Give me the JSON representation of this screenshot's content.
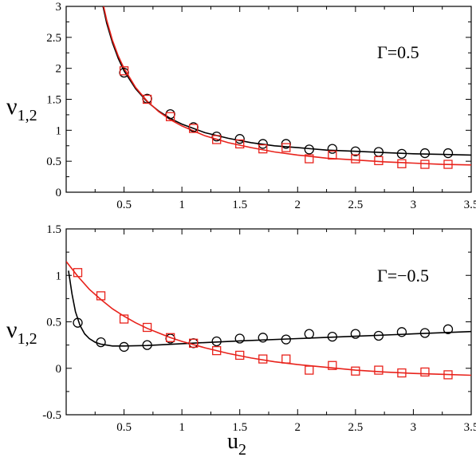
{
  "chart_data": [
    {
      "type": "scatter",
      "title": "",
      "xlabel": "",
      "ylabel": "ν",
      "ylabel_sub": "1,2",
      "annotation": "Γ=0.5",
      "xlim": [
        0,
        3.5
      ],
      "ylim": [
        0,
        3
      ],
      "xticks": [
        "0.5",
        "1",
        "1.5",
        "2",
        "2.5",
        "3",
        "3.5"
      ],
      "xtick_values": [
        0.5,
        1,
        1.5,
        2,
        2.5,
        3,
        3.5
      ],
      "yticks": [
        "0",
        "0.5",
        "1",
        "1.5",
        "2",
        "2.5",
        "3"
      ],
      "ytick_values": [
        0,
        0.5,
        1,
        1.5,
        2,
        2.5,
        3
      ],
      "series": [
        {
          "color": "#000000",
          "marker": "circle",
          "points": [
            [
              0.5,
              1.93
            ],
            [
              0.7,
              1.51
            ],
            [
              0.9,
              1.26
            ],
            [
              1.1,
              1.05
            ],
            [
              1.3,
              0.9
            ],
            [
              1.5,
              0.86
            ],
            [
              1.7,
              0.78
            ],
            [
              1.9,
              0.78
            ],
            [
              2.1,
              0.69
            ],
            [
              2.3,
              0.7
            ],
            [
              2.5,
              0.66
            ],
            [
              2.7,
              0.65
            ],
            [
              2.9,
              0.62
            ],
            [
              3.1,
              0.63
            ],
            [
              3.3,
              0.63
            ]
          ],
          "curve": [
            [
              0.3,
              3.16
            ],
            [
              0.35,
              2.73
            ],
            [
              0.4,
              2.41
            ],
            [
              0.45,
              2.16
            ],
            [
              0.5,
              1.96
            ],
            [
              0.6,
              1.67
            ],
            [
              0.7,
              1.46
            ],
            [
              0.8,
              1.31
            ],
            [
              0.9,
              1.19
            ],
            [
              1.0,
              1.1
            ],
            [
              1.2,
              0.96
            ],
            [
              1.4,
              0.87
            ],
            [
              1.6,
              0.8
            ],
            [
              1.8,
              0.75
            ],
            [
              2.0,
              0.72
            ],
            [
              2.25,
              0.68
            ],
            [
              2.5,
              0.66
            ],
            [
              2.75,
              0.64
            ],
            [
              3.0,
              0.62
            ],
            [
              3.25,
              0.61
            ],
            [
              3.5,
              0.6
            ]
          ]
        },
        {
          "color": "#e8221b",
          "marker": "square",
          "points": [
            [
              0.5,
              1.96
            ],
            [
              0.7,
              1.5
            ],
            [
              0.9,
              1.22
            ],
            [
              1.1,
              1.03
            ],
            [
              1.3,
              0.85
            ],
            [
              1.5,
              0.78
            ],
            [
              1.7,
              0.7
            ],
            [
              1.9,
              0.72
            ],
            [
              2.1,
              0.54
            ],
            [
              2.3,
              0.6
            ],
            [
              2.5,
              0.54
            ],
            [
              2.7,
              0.51
            ],
            [
              2.9,
              0.46
            ],
            [
              3.1,
              0.45
            ],
            [
              3.3,
              0.45
            ]
          ],
          "curve": [
            [
              0.3,
              3.2
            ],
            [
              0.35,
              2.78
            ],
            [
              0.4,
              2.45
            ],
            [
              0.45,
              2.2
            ],
            [
              0.5,
              2.0
            ],
            [
              0.6,
              1.69
            ],
            [
              0.7,
              1.47
            ],
            [
              0.8,
              1.3
            ],
            [
              0.9,
              1.17
            ],
            [
              1.0,
              1.07
            ],
            [
              1.2,
              0.91
            ],
            [
              1.4,
              0.8
            ],
            [
              1.6,
              0.72
            ],
            [
              1.8,
              0.65
            ],
            [
              2.0,
              0.6
            ],
            [
              2.25,
              0.55
            ],
            [
              2.5,
              0.52
            ],
            [
              2.75,
              0.49
            ],
            [
              3.0,
              0.47
            ],
            [
              3.25,
              0.45
            ],
            [
              3.5,
              0.44
            ]
          ]
        }
      ]
    },
    {
      "type": "scatter",
      "title": "",
      "xlabel": "u",
      "xlabel_sub": "2",
      "ylabel": "ν",
      "ylabel_sub": "1,2",
      "annotation": "Γ=−0.5",
      "xlim": [
        0,
        3.5
      ],
      "ylim": [
        -0.5,
        1.5
      ],
      "xticks": [
        "0.5",
        "1",
        "1.5",
        "2",
        "2.5",
        "3",
        "3.5"
      ],
      "xtick_values": [
        0.5,
        1,
        1.5,
        2,
        2.5,
        3,
        3.5
      ],
      "yticks": [
        "-0.5",
        "0",
        "0.5",
        "1",
        "1.5"
      ],
      "ytick_values": [
        -0.5,
        0,
        0.5,
        1,
        1.5
      ],
      "series": [
        {
          "color": "#000000",
          "marker": "circle",
          "points": [
            [
              0.1,
              0.49
            ],
            [
              0.3,
              0.28
            ],
            [
              0.5,
              0.23
            ],
            [
              0.7,
              0.25
            ],
            [
              0.9,
              0.32
            ],
            [
              1.1,
              0.27
            ],
            [
              1.3,
              0.29
            ],
            [
              1.5,
              0.32
            ],
            [
              1.7,
              0.33
            ],
            [
              1.9,
              0.31
            ],
            [
              2.1,
              0.37
            ],
            [
              2.3,
              0.34
            ],
            [
              2.5,
              0.37
            ],
            [
              2.7,
              0.35
            ],
            [
              2.9,
              0.39
            ],
            [
              3.1,
              0.38
            ],
            [
              3.3,
              0.42
            ]
          ],
          "curve": [
            [
              0.02,
              1.05
            ],
            [
              0.05,
              0.8
            ],
            [
              0.08,
              0.61
            ],
            [
              0.12,
              0.46
            ],
            [
              0.16,
              0.37
            ],
            [
              0.2,
              0.32
            ],
            [
              0.25,
              0.28
            ],
            [
              0.3,
              0.26
            ],
            [
              0.4,
              0.24
            ],
            [
              0.5,
              0.24
            ],
            [
              0.7,
              0.245
            ],
            [
              1.0,
              0.265
            ],
            [
              1.5,
              0.295
            ],
            [
              2.0,
              0.32
            ],
            [
              2.5,
              0.345
            ],
            [
              3.0,
              0.37
            ],
            [
              3.5,
              0.395
            ]
          ]
        },
        {
          "color": "#e8221b",
          "marker": "square",
          "points": [
            [
              0.1,
              1.03
            ],
            [
              0.3,
              0.78
            ],
            [
              0.5,
              0.53
            ],
            [
              0.7,
              0.44
            ],
            [
              0.9,
              0.33
            ],
            [
              1.1,
              0.27
            ],
            [
              1.3,
              0.19
            ],
            [
              1.5,
              0.14
            ],
            [
              1.7,
              0.1
            ],
            [
              1.9,
              0.1
            ],
            [
              2.1,
              -0.02
            ],
            [
              2.3,
              0.03
            ],
            [
              2.5,
              -0.03
            ],
            [
              2.7,
              -0.02
            ],
            [
              2.9,
              -0.05
            ],
            [
              3.1,
              -0.04
            ],
            [
              3.3,
              -0.07
            ]
          ],
          "curve": [
            [
              0.0,
              1.15
            ],
            [
              0.1,
              0.99
            ],
            [
              0.2,
              0.85
            ],
            [
              0.3,
              0.74
            ],
            [
              0.4,
              0.64
            ],
            [
              0.5,
              0.56
            ],
            [
              0.6,
              0.49
            ],
            [
              0.7,
              0.43
            ],
            [
              0.8,
              0.38
            ],
            [
              0.9,
              0.33
            ],
            [
              1.0,
              0.29
            ],
            [
              1.2,
              0.22
            ],
            [
              1.4,
              0.16
            ],
            [
              1.6,
              0.11
            ],
            [
              1.8,
              0.07
            ],
            [
              2.0,
              0.04
            ],
            [
              2.25,
              0.01
            ],
            [
              2.5,
              -0.02
            ],
            [
              2.75,
              -0.04
            ],
            [
              3.0,
              -0.055
            ],
            [
              3.25,
              -0.065
            ],
            [
              3.5,
              -0.075
            ]
          ]
        }
      ]
    }
  ]
}
